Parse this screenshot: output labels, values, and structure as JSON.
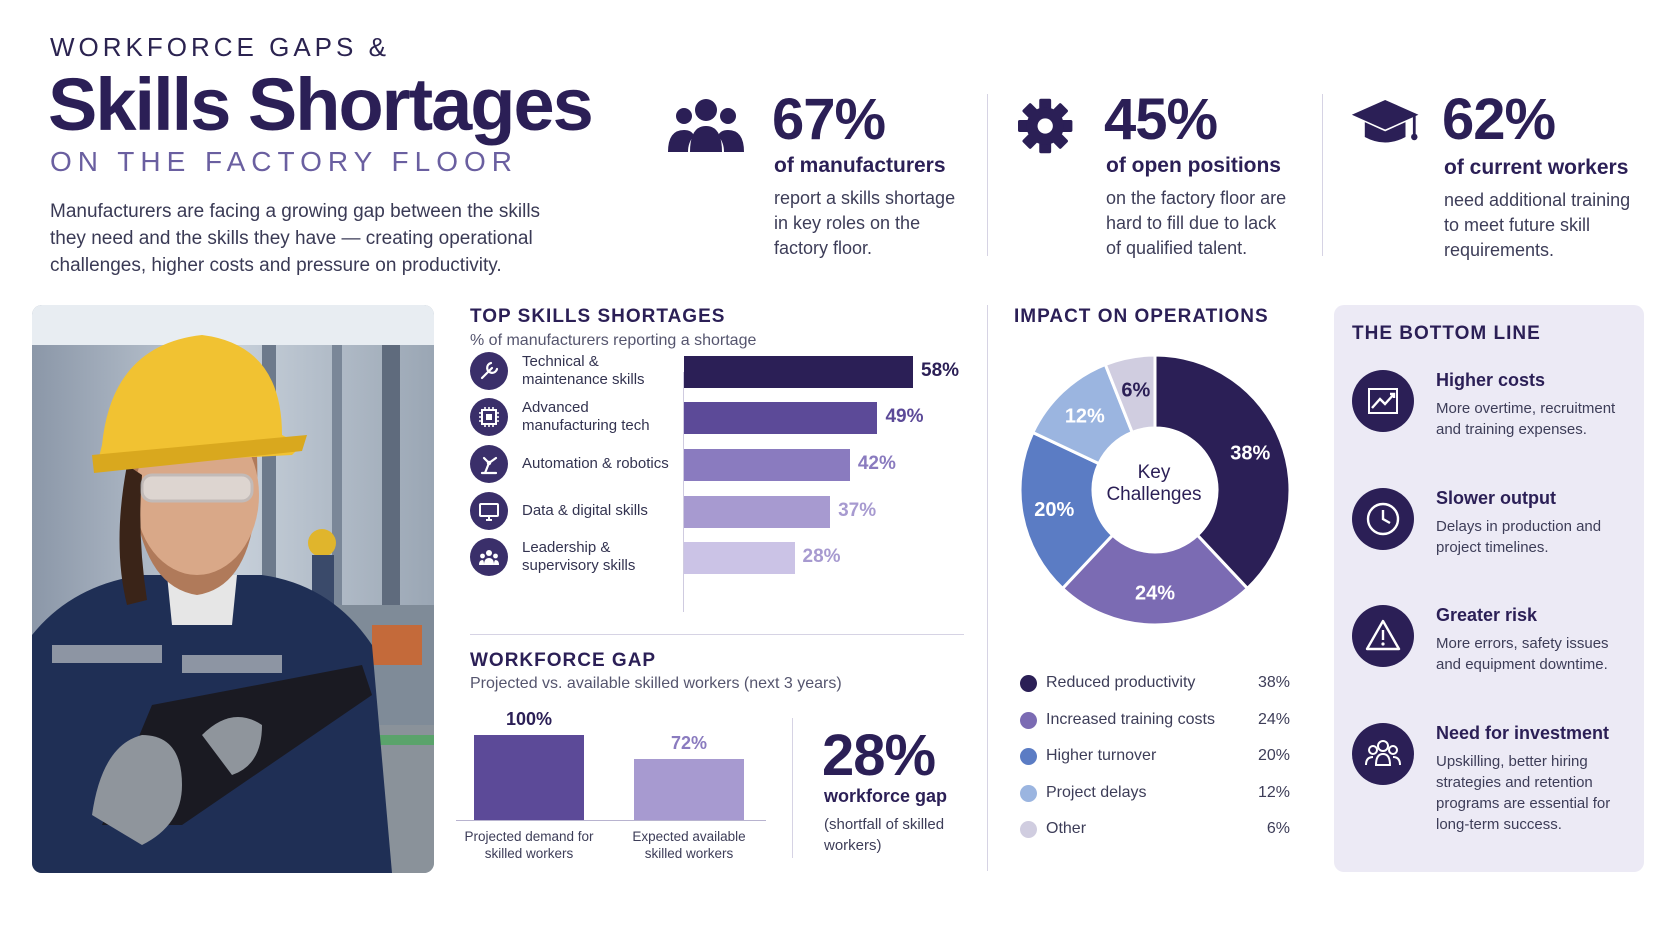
{
  "header": {
    "eyebrow": "WORKFORCE GAPS &",
    "title": "Skills Shortages",
    "subhead": "ON THE FACTORY FLOOR",
    "intro": "Manufacturers are facing a growing gap between the skills they need and the skills they have — creating operational challenges, higher costs and pressure on productivity."
  },
  "stats": [
    {
      "value": "67%",
      "label": "of manufacturers",
      "desc": "report a skills shortage in key roles on the factory floor.",
      "icon": "people-icon"
    },
    {
      "value": "45%",
      "label": "of open positions",
      "desc": "on the factory floor are hard to fill due to lack of qualified talent.",
      "icon": "gear-icon"
    },
    {
      "value": "62%",
      "label": "of current workers",
      "desc": "need additional training to meet future skill requirements.",
      "icon": "graduation-cap-icon"
    }
  ],
  "skills": {
    "title": "TOP SKILLS SHORTAGES",
    "subtitle": "% of manufacturers reporting a shortage"
  },
  "gap": {
    "title": "WORKFORCE GAP",
    "subtitle": "Projected vs. available skilled workers (next 3 years)",
    "big_value": "28%",
    "big_label": "workforce gap",
    "big_desc": "(shortfall of skilled workers)"
  },
  "impact": {
    "title": "IMPACT ON OPERATIONS",
    "center_label": "Key Challenges"
  },
  "bottom_line": {
    "title": "THE BOTTOM LINE",
    "items": [
      {
        "title": "Higher costs",
        "desc": "More overtime, recruitment and training expenses.",
        "icon": "trend-up-icon"
      },
      {
        "title": "Slower output",
        "desc": "Delays in production and project timelines.",
        "icon": "clock-icon"
      },
      {
        "title": "Greater risk",
        "desc": "More errors, safety issues and equipment downtime.",
        "icon": "warning-icon"
      },
      {
        "title": "Need for investment",
        "desc": "Upskilling, better hiring strategies and retention programs are essential for long-term success.",
        "icon": "team-icon"
      }
    ]
  },
  "colors": {
    "dark": "#2b1f56",
    "s1": "#2b1f56",
    "s2": "#5c4a98",
    "s3": "#8a7bbf",
    "s4": "#a79ad0",
    "s5": "#cbc3e6",
    "pie_reduced": "#2b1f56",
    "pie_training": "#7b6bb3",
    "pie_turnover": "#5b7cc4",
    "pie_delays": "#9bb5e0",
    "pie_other": "#d0cde0"
  },
  "chart_data": [
    {
      "type": "bar",
      "orientation": "horizontal",
      "title": "TOP SKILLS SHORTAGES",
      "subtitle": "% of manufacturers reporting a shortage",
      "categories": [
        "Technical & maintenance skills",
        "Advanced manufacturing tech",
        "Automation & robotics",
        "Data & digital skills",
        "Leadership & supervisory skills"
      ],
      "values": [
        58,
        49,
        42,
        37,
        28
      ],
      "labels": [
        "58%",
        "49%",
        "42%",
        "37%",
        "28%"
      ],
      "icons": [
        "wrench-icon",
        "chip-icon",
        "robot-arm-icon",
        "monitor-icon",
        "group-icon"
      ]
    },
    {
      "type": "bar",
      "title": "WORKFORCE GAP",
      "subtitle": "Projected vs. available skilled workers (next 3 years)",
      "categories": [
        "Projected demand for skilled workers",
        "Expected available skilled workers"
      ],
      "values": [
        100,
        72
      ],
      "labels": [
        "100%",
        "72%"
      ]
    },
    {
      "type": "pie",
      "title": "IMPACT ON OPERATIONS",
      "categories": [
        "Reduced productivity",
        "Increased training costs",
        "Higher turnover",
        "Project delays",
        "Other"
      ],
      "values": [
        38,
        24,
        20,
        12,
        6
      ],
      "labels": [
        "38%",
        "24%",
        "20%",
        "12%",
        "6%"
      ]
    }
  ]
}
